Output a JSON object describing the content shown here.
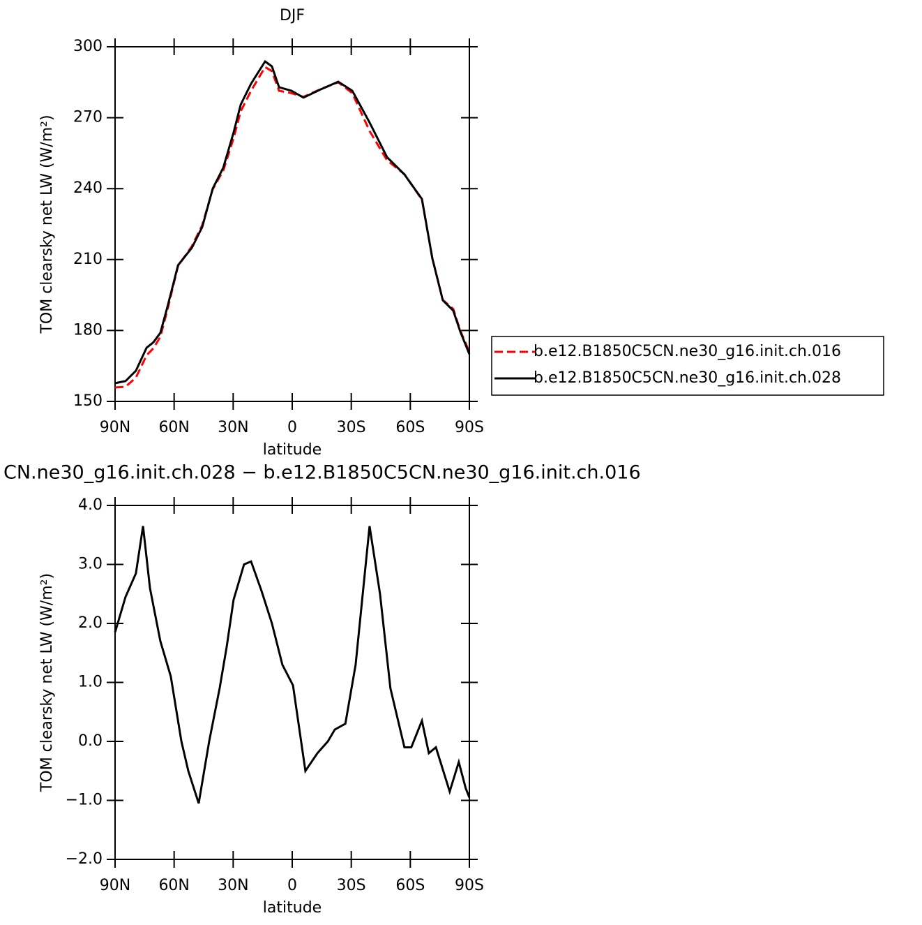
{
  "chart_data": [
    {
      "type": "line",
      "title": "DJF",
      "xlabel": "latitude",
      "ylabel": "TOM clearsky net LW (W/m²)",
      "x": [
        90,
        84.7,
        79.4,
        74,
        70.5,
        67,
        63.4,
        58,
        51,
        45.7,
        40.4,
        35,
        29.8,
        26.2,
        20.9,
        13.8,
        10.3,
        6.7,
        0.4,
        -5.7,
        -14.5,
        -23.4,
        -30.5,
        -39.3,
        -48.2,
        -57,
        -65.9,
        -71.2,
        -76.5,
        -81.8,
        -85.4,
        -90
      ],
      "series": [
        {
          "name": "b.e12.B1850C5CN.ne30_g16.init.ch.016",
          "color": "#ff0000",
          "dash": true,
          "values": [
            155.9,
            156.2,
            160.1,
            169.5,
            172.5,
            177.3,
            188.8,
            207.3,
            215.6,
            224.6,
            239.7,
            247.7,
            261.3,
            272.7,
            281.4,
            291.4,
            289.7,
            281.4,
            280.4,
            278.8,
            282.1,
            285.0,
            280.4,
            264.4,
            252.0,
            246.1,
            235.3,
            210.6,
            192.9,
            189.1,
            179.9,
            170.9
          ]
        },
        {
          "name": "b.e12.B1850C5CN.ne30_g16.init.ch.028",
          "color": "#000000",
          "dash": false,
          "values": [
            157.7,
            158.6,
            163,
            172.7,
            175,
            179,
            190,
            207.6,
            215,
            223.8,
            240,
            248.9,
            263.7,
            275.5,
            284.4,
            293.8,
            291.7,
            282.9,
            281.4,
            278.5,
            282,
            285.2,
            281.4,
            268,
            253.3,
            246,
            235.6,
            210.5,
            192.8,
            188.4,
            179.5,
            170
          ]
        }
      ],
      "xlim": [
        90,
        -90
      ],
      "xticks": [
        {
          "value": 90,
          "label": "90N"
        },
        {
          "value": 60,
          "label": "60N"
        },
        {
          "value": 30,
          "label": "30N"
        },
        0,
        {
          "value": -30,
          "label": "30S"
        },
        {
          "value": -60,
          "label": "60S"
        },
        {
          "value": -90,
          "label": "90S"
        }
      ],
      "ylim": [
        150,
        300
      ],
      "yticks": [
        150,
        180,
        210,
        240,
        270,
        300
      ],
      "legend": "right"
    },
    {
      "type": "line",
      "title": "CN.ne30_g16.init.ch.028 − b.e12.B1850C5CN.ne30_g16.init.ch.016",
      "xlabel": "latitude",
      "ylabel": "TOM clearsky net LW (W/m²)",
      "x": [
        90,
        84.7,
        79.4,
        75.8,
        72.3,
        67,
        61.7,
        56.3,
        52.8,
        47.5,
        42.2,
        36.9,
        33.3,
        29.8,
        24.5,
        20.9,
        15.6,
        10.3,
        5,
        -0.4,
        -6.7,
        -12.8,
        -18.1,
        -21.6,
        -27,
        -32.2,
        -39.3,
        -44.6,
        -49.9,
        -57,
        -60.5,
        -65.9,
        -69.4,
        -73,
        -80,
        -84.6,
        -88.2,
        -90
      ],
      "series": [
        {
          "color": "#000000",
          "values": [
            1.85,
            2.45,
            2.85,
            3.65,
            2.6,
            1.7,
            1.1,
            0.0,
            -0.5,
            -1.05,
            0.0,
            0.9,
            1.6,
            2.4,
            3.0,
            3.05,
            2.55,
            2.0,
            1.3,
            0.95,
            -0.5,
            -0.2,
            0.0,
            0.2,
            0.3,
            1.3,
            3.65,
            2.5,
            0.9,
            -0.1,
            -0.1,
            0.35,
            -0.2,
            -0.1,
            -0.85,
            -0.35,
            -0.8,
            -0.95
          ]
        }
      ],
      "xlim": [
        90,
        -90
      ],
      "xticks": [
        {
          "value": 90,
          "label": "90N"
        },
        {
          "value": 60,
          "label": "60N"
        },
        {
          "value": 30,
          "label": "30N"
        },
        0,
        {
          "value": -30,
          "label": "30S"
        },
        {
          "value": -60,
          "label": "60S"
        },
        {
          "value": -90,
          "label": "90S"
        }
      ],
      "ylim": [
        -2,
        4
      ],
      "yticks": [
        {
          "value": -2,
          "label": "−2.0"
        },
        {
          "value": -1,
          "label": "−1.0"
        },
        {
          "value": 0,
          "label": "0.0"
        },
        {
          "value": 1,
          "label": "1.0"
        },
        {
          "value": 2,
          "label": "2.0"
        },
        {
          "value": 3,
          "label": "3.0"
        },
        {
          "value": 4,
          "label": "4.0"
        }
      ]
    }
  ]
}
